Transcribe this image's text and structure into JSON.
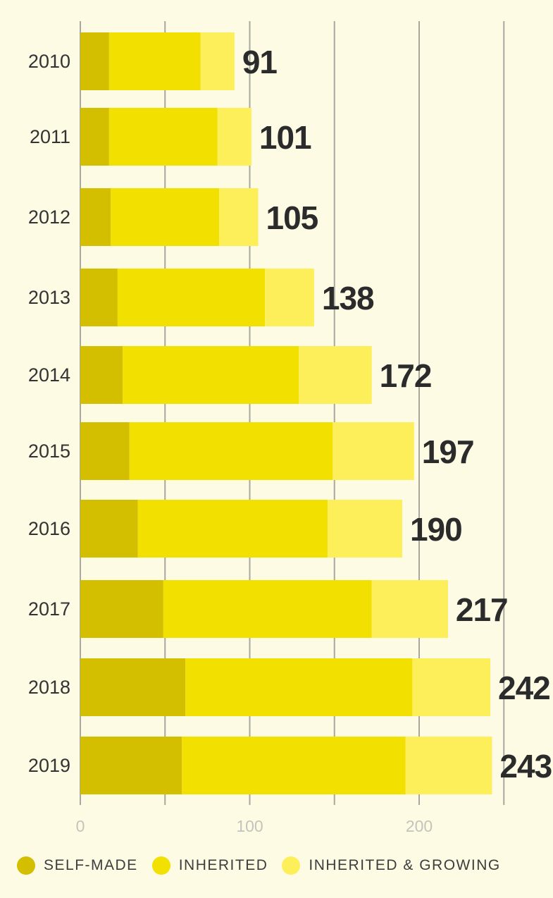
{
  "chart_data": {
    "type": "bar",
    "orientation": "horizontal",
    "stacked": true,
    "categories": [
      "2010",
      "2011",
      "2012",
      "2013",
      "2014",
      "2015",
      "2016",
      "2017",
      "2018",
      "2019"
    ],
    "series": [
      {
        "name": "SELF-MADE",
        "color": "#d4be00",
        "values": [
          17,
          17,
          18,
          22,
          25,
          29,
          34,
          49,
          62,
          60
        ]
      },
      {
        "name": "INHERITED",
        "color": "#f2e000",
        "values": [
          54,
          64,
          64,
          87,
          104,
          120,
          112,
          123,
          134,
          132
        ]
      },
      {
        "name": "INHERITED & GROWING",
        "color": "#fcef5a",
        "values": [
          20,
          20,
          23,
          29,
          43,
          48,
          44,
          45,
          46,
          51
        ]
      }
    ],
    "totals": [
      "91",
      "101",
      "105",
      "138",
      "172",
      "197",
      "190",
      "217",
      "242",
      "243"
    ],
    "xticks": [
      "0",
      "100",
      "200"
    ],
    "xtick_values": [
      0,
      100,
      200
    ],
    "xlim": [
      0,
      250
    ],
    "gridlines": [
      0,
      50,
      100,
      150,
      200,
      250
    ],
    "grid": true,
    "legend_position": "bottom"
  }
}
